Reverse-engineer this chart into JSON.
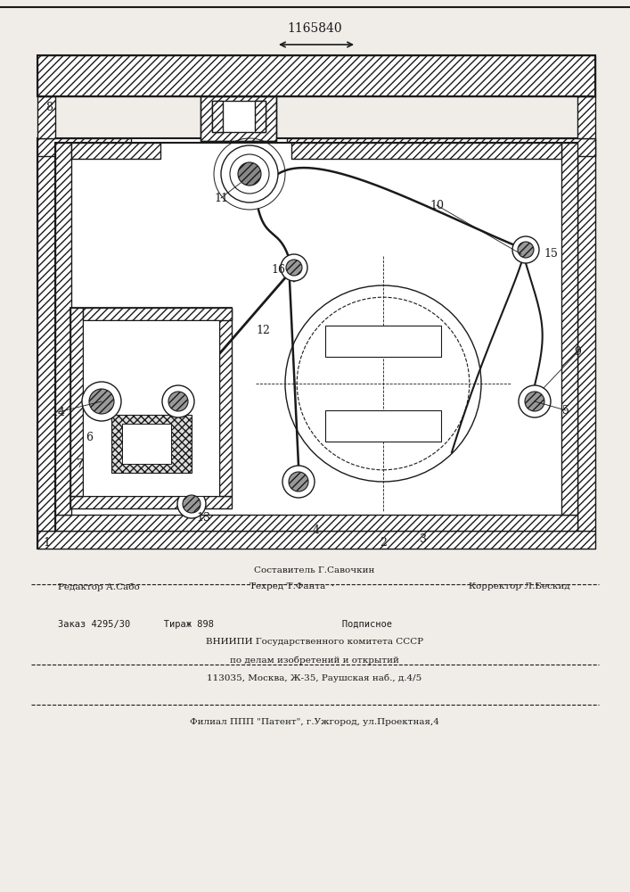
{
  "patent_number": "1165840",
  "bg": "#f0ede8",
  "lc": "#1a1a1a",
  "lw": 1.0,
  "figw": 7.07,
  "figh": 10.0,
  "dpi": 100,
  "footer": {
    "line1": "Составитель Г.Савочкин",
    "line2l": "Редактор А.Сабо",
    "line2m": "Техред Т.Фанта  ·",
    "line2r": "Корректор Л.Бескид",
    "line3": "Заказ 4295/30      Тираж 898                       Подписное",
    "line4": "ВНИИПИ Государственного комитета СССР",
    "line5": "по делам изобретений и открытий",
    "line6": "113035, Москва, Ж-35, Раушская наб., д.4/5",
    "line7": "Филиал ППП \"Патент\", г.Ужгород, ул.Проектная,4"
  }
}
